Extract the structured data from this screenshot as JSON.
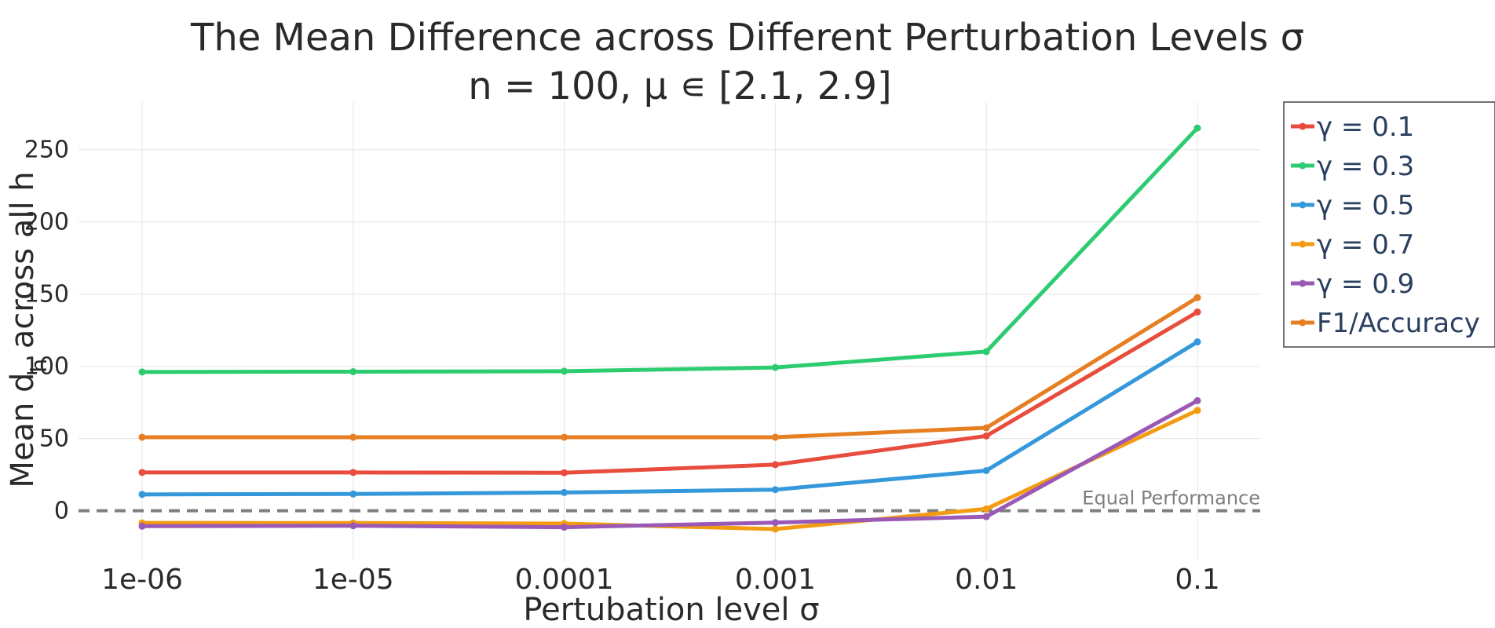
{
  "chart_data": {
    "type": "line",
    "title": "The Mean Difference across Different Perturbation Levels σ",
    "subtitle": "n = 100, μ ∊ [2.1, 2.9]",
    "xlabel": "Pertubation level σ",
    "ylabel_main": "Mean d",
    "ylabel_sub": "h",
    "ylabel_tail": " across all h",
    "x": [
      "1e-06",
      "1e-05",
      "0.0001",
      "0.001",
      "0.01",
      "0.1"
    ],
    "yticks": [
      0,
      50,
      100,
      150,
      200,
      250
    ],
    "ylim": [
      -35,
      283
    ],
    "grid": true,
    "legend_position": "top-right",
    "series": [
      {
        "name": "γ = 0.1",
        "color": "#e74c3c",
        "values": [
          26.5,
          26.5,
          26.3,
          31.9,
          51.8,
          137.6
        ]
      },
      {
        "name": "γ = 0.3",
        "color": "#2ecc71",
        "values": [
          96.1,
          96.3,
          96.6,
          99.2,
          110.2,
          265.0
        ]
      },
      {
        "name": "γ = 0.5",
        "color": "#3498db",
        "values": [
          11.3,
          11.6,
          12.6,
          14.6,
          27.8,
          116.9
        ]
      },
      {
        "name": "γ = 0.7",
        "color": "#f39c12",
        "values": [
          -8.4,
          -8.5,
          -8.9,
          -12.7,
          1.3,
          69.5
        ]
      },
      {
        "name": "γ = 0.9",
        "color": "#9b59b6",
        "values": [
          -10.7,
          -10.4,
          -11.4,
          -8.2,
          -4.1,
          76.2
        ]
      },
      {
        "name": "F1/Accuracy",
        "color": "#e67e22",
        "values": [
          50.9,
          50.9,
          50.9,
          50.9,
          57.4,
          147.6
        ]
      }
    ],
    "reference_line": {
      "value": 0,
      "label": "Equal Performance",
      "color": "#7f7f7f"
    }
  }
}
